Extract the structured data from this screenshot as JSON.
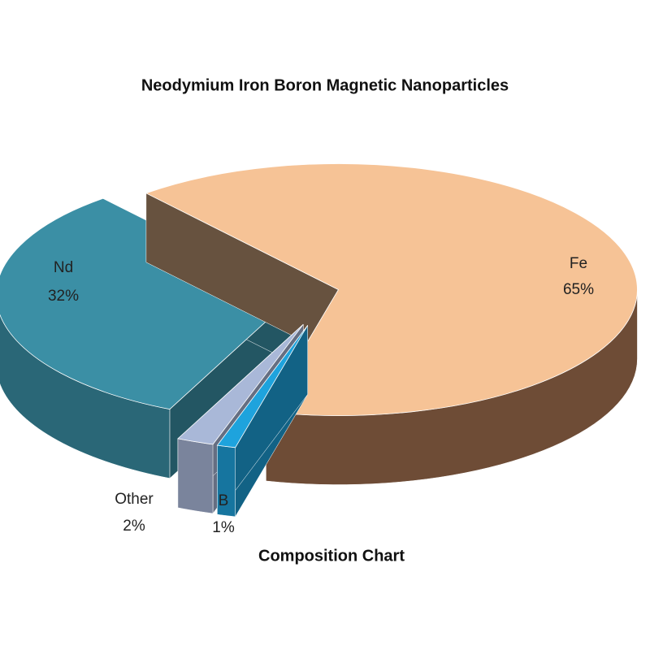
{
  "chart_data": {
    "type": "pie",
    "title": "Neodymium Iron Boron Magnetic Nanoparticles",
    "subtitle": "Composition Chart",
    "categories": [
      "Fe",
      "B",
      "Other",
      "Nd"
    ],
    "values": [
      65,
      1,
      2,
      32
    ],
    "value_labels": [
      "65%",
      "1%",
      "2%",
      "32%"
    ],
    "colors": [
      "#f6c396",
      "#1ea3dd",
      "#a9b8d8",
      "#3b8fa5"
    ]
  }
}
